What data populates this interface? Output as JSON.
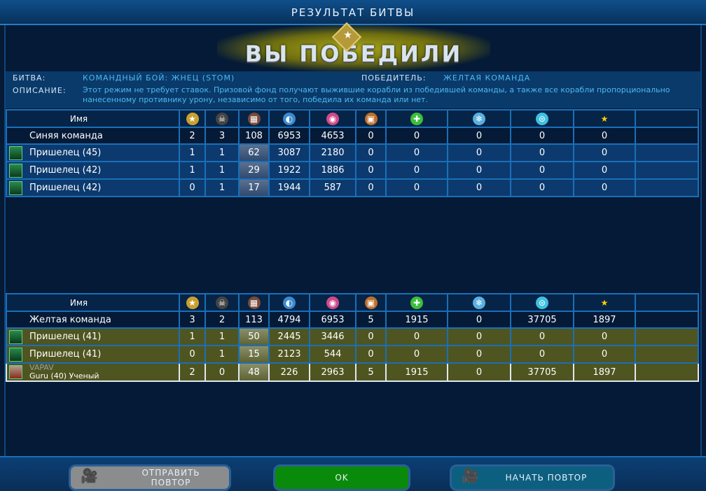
{
  "title": "РЕЗУЛЬТАТ БИТВЫ",
  "banner": "ВЫ ПОБЕДИЛИ",
  "info": {
    "battle_label": "БИТВА:",
    "battle_value": "КОМАНДНЫЙ БОЙ: ЖНЕЦ (STOM)",
    "winner_label": "ПОБЕДИТЕЛЬ:",
    "winner_value": "ЖЕЛТАЯ КОМАНДА",
    "desc_label": "ОПИСАНИЕ:",
    "desc_value": "Этот режим не требует ставок. Призовой фонд получают выжившие корабли из победившей команды, а также все корабли пропорционально нанесенному противнику урону, независимо от того, победила их команда или нет."
  },
  "columns": {
    "name": "Имя",
    "icons": [
      "medal-icon",
      "skull-icon",
      "modules-icon",
      "damage-dealt-icon",
      "damage-taken-icon",
      "chest-icon",
      "repair-icon",
      "crystal-icon",
      "credits-icon",
      "star-icon"
    ]
  },
  "teams": [
    {
      "name": "Синяя команда",
      "stats": [
        "2",
        "3",
        "108",
        "6953",
        "4653",
        "0",
        "0",
        "0",
        "0",
        "0"
      ],
      "players": [
        {
          "name": "Пришелец (45)",
          "stats": [
            "1",
            "1",
            "62",
            "3087",
            "2180",
            "0",
            "0",
            "0",
            "0",
            "0"
          ]
        },
        {
          "name": "Пришелец (42)",
          "stats": [
            "1",
            "1",
            "29",
            "1922",
            "1886",
            "0",
            "0",
            "0",
            "0",
            "0"
          ]
        },
        {
          "name": "Пришелец (42)",
          "stats": [
            "0",
            "1",
            "17",
            "1944",
            "587",
            "0",
            "0",
            "0",
            "0",
            "0"
          ]
        }
      ]
    },
    {
      "name": "Желтая команда",
      "stats": [
        "3",
        "2",
        "113",
        "4794",
        "6953",
        "5",
        "1915",
        "0",
        "37705",
        "1897"
      ],
      "players": [
        {
          "name": "Пришелец (41)",
          "stats": [
            "1",
            "1",
            "50",
            "2445",
            "3446",
            "0",
            "0",
            "0",
            "0",
            "0"
          ]
        },
        {
          "name": "Пришелец (41)",
          "stats": [
            "0",
            "1",
            "15",
            "2123",
            "544",
            "0",
            "0",
            "0",
            "0",
            "0"
          ]
        },
        {
          "name": "VAPAV",
          "sub": "Guru (40) Ученый",
          "stats": [
            "2",
            "0",
            "48",
            "226",
            "2963",
            "5",
            "1915",
            "0",
            "37705",
            "1897"
          ]
        }
      ]
    }
  ],
  "buttons": {
    "send_replay": "ОТПРАВИТЬ ПОВТОР",
    "ok": "OK",
    "start_replay": "НАЧАТЬ ПОВТОР"
  }
}
